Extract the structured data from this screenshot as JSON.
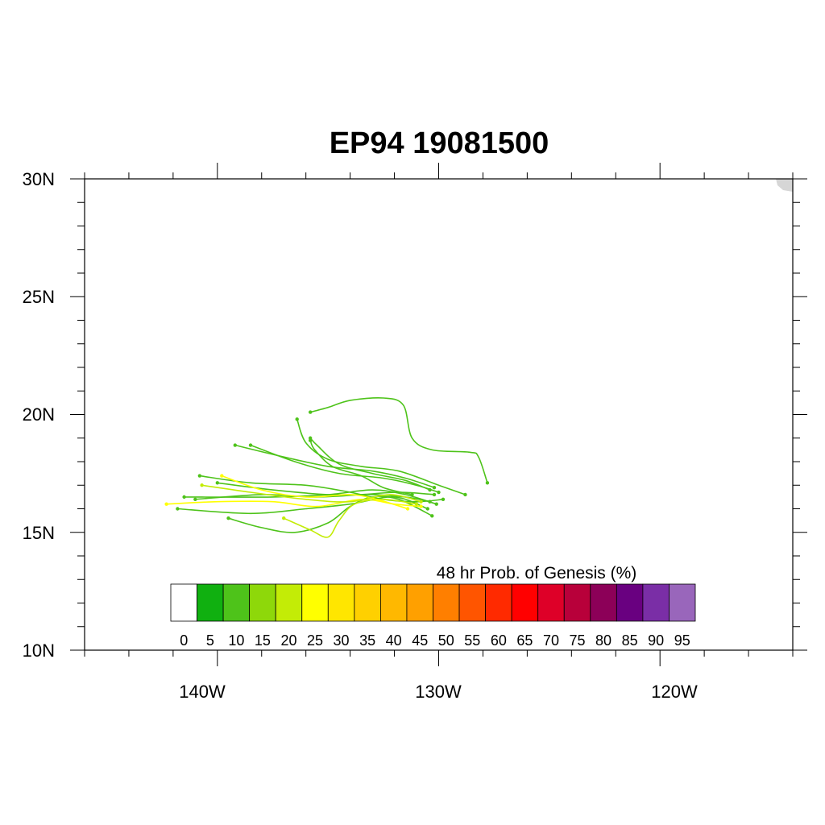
{
  "title": "EP94 19081500",
  "axes": {
    "lat_labels": [
      "30N",
      "25N",
      "20N",
      "15N",
      "10N"
    ],
    "lon_labels": [
      "140W",
      "130W",
      "120W"
    ]
  },
  "colorbar": {
    "title": "48 hr Prob. of Genesis (%)",
    "labels": [
      "0",
      "5",
      "10",
      "15",
      "20",
      "25",
      "30",
      "35",
      "40",
      "45",
      "50",
      "55",
      "60",
      "65",
      "70",
      "75",
      "80",
      "85",
      "90",
      "95"
    ],
    "colors": [
      "#ffffff",
      "#10b010",
      "#4ec31a",
      "#8ed80a",
      "#c3ec06",
      "#ffff00",
      "#ffe600",
      "#ffd000",
      "#ffb800",
      "#ffa000",
      "#ff7f00",
      "#ff5500",
      "#ff2a00",
      "#ff0000",
      "#de0028",
      "#b8003a",
      "#8c0058",
      "#690080",
      "#7a2ea6",
      "#9966bb"
    ]
  },
  "chart_data": {
    "type": "map-tracks",
    "region": {
      "lat_range": [
        10,
        30
      ],
      "lon_range": [
        -146,
        -114
      ]
    },
    "lat_ticks": [
      30,
      25,
      20,
      15,
      10
    ],
    "lon_ticks": [
      -140,
      -130,
      -120
    ],
    "tracks": [
      {
        "color": "#4ec31a",
        "points": [
          [
            -130.4,
            16.3
          ],
          [
            -131.5,
            16.5
          ],
          [
            -133.0,
            16.6
          ],
          [
            -135.0,
            16.6
          ],
          [
            -137.5,
            16.8
          ],
          [
            -140.0,
            17.1
          ]
        ]
      },
      {
        "color": "#4ec31a",
        "points": [
          [
            -130.2,
            16.6
          ],
          [
            -131.8,
            16.7
          ],
          [
            -133.5,
            16.6
          ],
          [
            -135.5,
            16.5
          ],
          [
            -138.0,
            16.6
          ],
          [
            -141.0,
            16.4
          ]
        ]
      },
      {
        "color": "#4ec31a",
        "points": [
          [
            -130.5,
            16.0
          ],
          [
            -132.0,
            16.5
          ],
          [
            -134.0,
            16.2
          ],
          [
            -136.0,
            16.0
          ],
          [
            -138.5,
            15.8
          ],
          [
            -141.8,
            16.0
          ]
        ]
      },
      {
        "color": "#4ec31a",
        "points": [
          [
            -130.1,
            16.2
          ],
          [
            -131.5,
            16.6
          ],
          [
            -133.0,
            16.8
          ],
          [
            -135.0,
            16.6
          ],
          [
            -137.5,
            16.5
          ],
          [
            -141.5,
            16.5
          ]
        ]
      },
      {
        "color": "#4ec31a",
        "points": [
          [
            -130.3,
            15.7
          ],
          [
            -131.8,
            16.4
          ],
          [
            -133.0,
            16.5
          ],
          [
            -134.0,
            16.1
          ],
          [
            -135.0,
            15.4
          ],
          [
            -136.5,
            15.0
          ],
          [
            -138.0,
            15.2
          ],
          [
            -139.5,
            15.6
          ]
        ]
      },
      {
        "color": "#4ec31a",
        "points": [
          [
            -130.2,
            16.9
          ],
          [
            -131.5,
            17.3
          ],
          [
            -133.0,
            17.6
          ],
          [
            -135.0,
            17.8
          ],
          [
            -137.0,
            18.2
          ],
          [
            -139.2,
            18.7
          ]
        ]
      },
      {
        "color": "#4ec31a",
        "points": [
          [
            -130.0,
            16.7
          ],
          [
            -131.0,
            17.0
          ],
          [
            -132.5,
            17.3
          ],
          [
            -134.5,
            17.5
          ],
          [
            -136.5,
            18.0
          ],
          [
            -138.5,
            18.7
          ]
        ]
      },
      {
        "color": "#4ec31a",
        "points": [
          [
            -128.8,
            16.6
          ],
          [
            -130.0,
            17.0
          ],
          [
            -131.8,
            17.6
          ],
          [
            -133.5,
            17.8
          ],
          [
            -135.0,
            18.1
          ],
          [
            -136.0,
            18.8
          ],
          [
            -136.4,
            19.8
          ]
        ]
      },
      {
        "color": "#4ec31a",
        "points": [
          [
            -130.4,
            16.8
          ],
          [
            -131.5,
            17.2
          ],
          [
            -133.0,
            17.5
          ],
          [
            -134.5,
            17.9
          ],
          [
            -135.5,
            18.7
          ],
          [
            -135.8,
            19.0
          ]
        ]
      },
      {
        "color": "#4ec31a",
        "points": [
          [
            -131.2,
            16.6
          ],
          [
            -132.5,
            16.9
          ],
          [
            -133.5,
            17.4
          ],
          [
            -134.8,
            17.8
          ],
          [
            -135.6,
            18.5
          ],
          [
            -135.8,
            18.9
          ]
        ]
      },
      {
        "color": "#4ec31a",
        "points": [
          [
            -129.8,
            16.4
          ],
          [
            -131.0,
            16.3
          ],
          [
            -132.5,
            16.4
          ],
          [
            -134.0,
            16.7
          ],
          [
            -136.0,
            17.0
          ],
          [
            -138.5,
            17.1
          ],
          [
            -140.8,
            17.4
          ]
        ]
      },
      {
        "color": "#4ec31a",
        "points": [
          [
            -127.8,
            17.1
          ],
          [
            -128.2,
            18.2
          ],
          [
            -128.6,
            18.4
          ],
          [
            -130.3,
            18.5
          ],
          [
            -131.2,
            19.0
          ],
          [
            -131.6,
            20.4
          ],
          [
            -132.5,
            20.7
          ],
          [
            -134.0,
            20.6
          ],
          [
            -135.0,
            20.3
          ],
          [
            -135.8,
            20.1
          ]
        ]
      },
      {
        "color": "#ffff00",
        "points": [
          [
            -130.8,
            16.1
          ],
          [
            -132.0,
            16.2
          ],
          [
            -133.5,
            16.4
          ],
          [
            -135.5,
            16.1
          ],
          [
            -137.5,
            16.3
          ],
          [
            -140.0,
            16.3
          ],
          [
            -142.3,
            16.2
          ]
        ]
      },
      {
        "color": "#c3ec06",
        "points": [
          [
            -131.0,
            16.2
          ],
          [
            -132.5,
            16.4
          ],
          [
            -133.8,
            16.2
          ],
          [
            -134.5,
            15.5
          ],
          [
            -135.0,
            14.8
          ],
          [
            -135.8,
            15.1
          ],
          [
            -137.0,
            15.6
          ]
        ]
      },
      {
        "color": "#ffff00",
        "points": [
          [
            -131.4,
            16.0
          ],
          [
            -132.8,
            16.4
          ],
          [
            -134.0,
            16.6
          ],
          [
            -136.0,
            16.5
          ],
          [
            -138.0,
            16.8
          ],
          [
            -139.8,
            17.4
          ]
        ]
      },
      {
        "color": "#c3ec06",
        "points": [
          [
            -130.8,
            16.3
          ],
          [
            -132.2,
            16.6
          ],
          [
            -134.0,
            16.3
          ],
          [
            -136.0,
            16.4
          ],
          [
            -138.5,
            16.7
          ],
          [
            -140.7,
            17.0
          ]
        ]
      }
    ]
  }
}
